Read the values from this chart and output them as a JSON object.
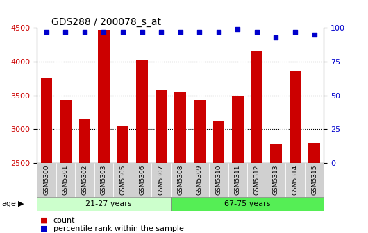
{
  "title": "GDS288 / 200078_s_at",
  "samples": [
    "GSM5300",
    "GSM5301",
    "GSM5302",
    "GSM5303",
    "GSM5305",
    "GSM5306",
    "GSM5307",
    "GSM5308",
    "GSM5309",
    "GSM5310",
    "GSM5311",
    "GSM5312",
    "GSM5313",
    "GSM5314",
    "GSM5315"
  ],
  "counts": [
    3760,
    3440,
    3160,
    4470,
    3050,
    4020,
    3580,
    3560,
    3440,
    3120,
    3490,
    4160,
    2790,
    3870,
    2800
  ],
  "percentile_ranks": [
    97,
    97,
    97,
    97,
    97,
    97,
    97,
    97,
    97,
    97,
    99,
    97,
    93,
    97,
    95
  ],
  "bar_color": "#CC0000",
  "dot_color": "#0000CC",
  "ylim_left": [
    2500,
    4500
  ],
  "ylim_right": [
    0,
    100
  ],
  "yticks_left": [
    2500,
    3000,
    3500,
    4000,
    4500
  ],
  "yticks_right": [
    0,
    25,
    50,
    75,
    100
  ],
  "group1_label": "21-27 years",
  "group2_label": "67-75 years",
  "group1_count": 7,
  "group2_count": 8,
  "age_label": "age",
  "legend_count": "count",
  "legend_percentile": "percentile rank within the sample",
  "plot_bg": "#ffffff",
  "group1_color": "#ccffcc",
  "group2_color": "#55ee55",
  "bar_width": 0.6,
  "grid_lines": [
    3000,
    3500,
    4000
  ]
}
